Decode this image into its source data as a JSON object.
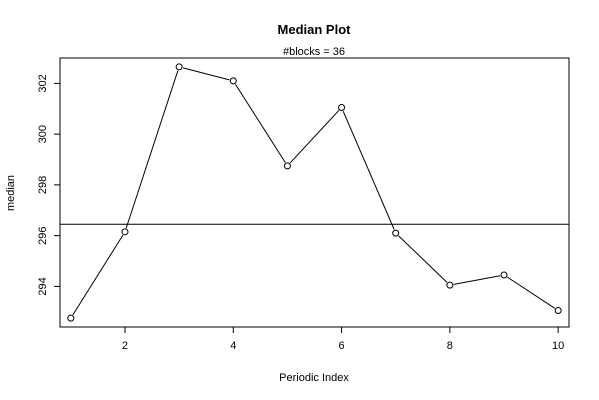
{
  "chart_data": {
    "type": "line",
    "title": "Median Plot",
    "subtitle": "#blocks =  36",
    "xlabel": "Periodic Index",
    "ylabel": "median",
    "x": [
      1,
      2,
      3,
      4,
      5,
      6,
      7,
      8,
      9,
      10
    ],
    "values": [
      292.75,
      296.15,
      302.65,
      302.1,
      298.75,
      301.05,
      296.1,
      294.05,
      294.45,
      293.05
    ],
    "reference_line": 296.45,
    "xlim": [
      0.8,
      10.2
    ],
    "ylim": [
      292.4,
      303.0
    ],
    "x_ticks": [
      2,
      4,
      6,
      8,
      10
    ],
    "y_ticks": [
      294,
      296,
      298,
      300,
      302
    ],
    "grid": false,
    "marker": "open-circle",
    "line_color": "#000000",
    "marker_color": "#000000"
  }
}
